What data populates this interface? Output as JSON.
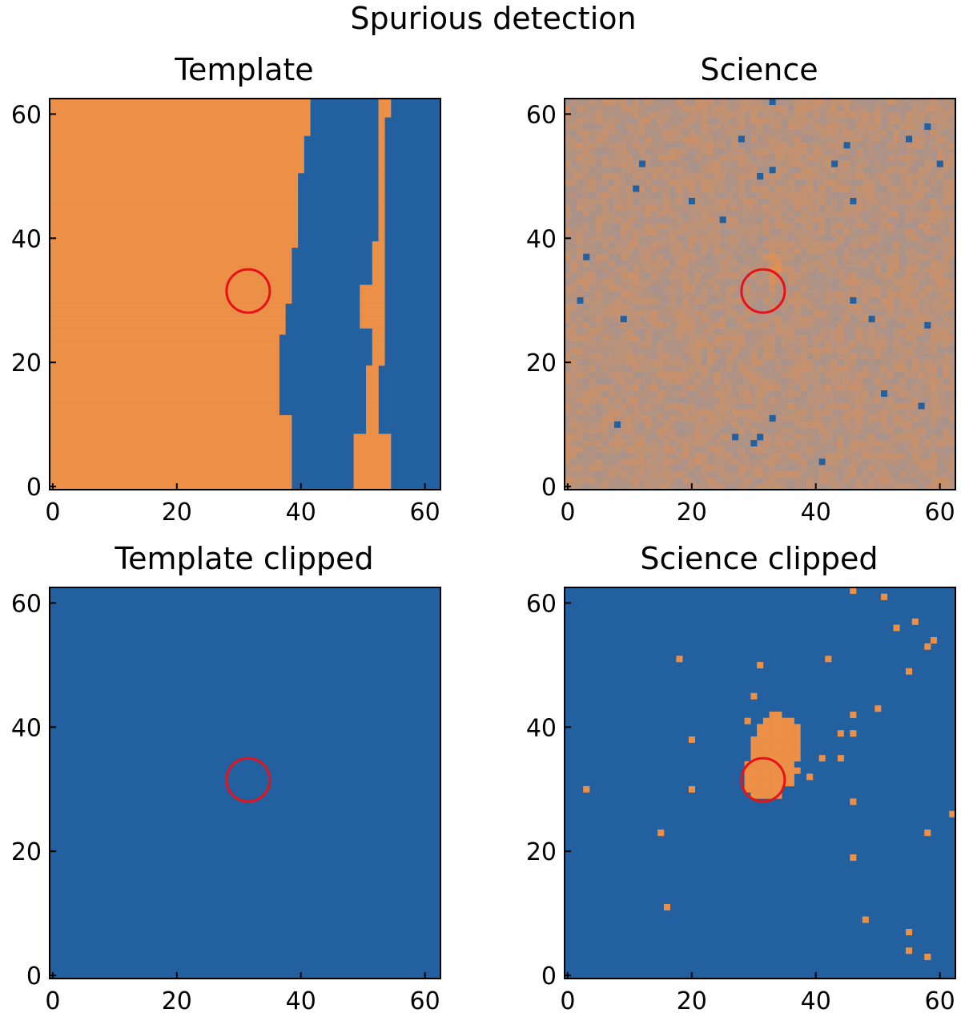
{
  "figure": {
    "title": "Spurious detection"
  },
  "colors": {
    "orange": "#ec8f47",
    "blue": "#2360a0",
    "circle": "#e8111a",
    "axis": "#000000"
  },
  "chart_data": [
    {
      "type": "heatmap",
      "title": "Template",
      "xlim": [
        -0.5,
        62.5
      ],
      "ylim": [
        -0.5,
        62.5
      ],
      "xticks": [
        "0",
        "20",
        "40",
        "60"
      ],
      "yticks": [
        "0",
        "20",
        "40",
        "60"
      ],
      "marker_circle": {
        "x": 31.5,
        "y": 31.5
      },
      "description_values": "left region orange up to x~38-42, blue band x~39-52, thin orange streak x~51-55, blue beyond",
      "regions": [
        {
          "color": "orange",
          "x0": -0.5,
          "x1": 38.5,
          "y0": -0.5,
          "y1": 62.5
        },
        {
          "color": "orange",
          "x0": 38.5,
          "x1": 41.5,
          "y0": 51.5,
          "y1": 62.5
        },
        {
          "color": "orange",
          "x0": 38.5,
          "x1": 40.5,
          "y0": 38.5,
          "y1": 51.5
        },
        {
          "color": "orange",
          "x0": 38.5,
          "x1": 39.5,
          "y0": 29.5,
          "y1": 38.5
        },
        {
          "color": "orange",
          "x0": 36.5,
          "x1": 38.5,
          "y0": 11.5,
          "y1": 25.5
        },
        {
          "color": "blue",
          "x0": 38.5,
          "x1": 51.5,
          "y0": -0.5,
          "y1": 29.5
        },
        {
          "color": "orange",
          "x0": 50.5,
          "x1": 54.5,
          "y0": 2.5,
          "y1": 10.5
        },
        {
          "color": "orange",
          "x0": 52.5,
          "x1": 53.5,
          "y0": 10.5,
          "y1": 32.5
        },
        {
          "color": "orange",
          "x0": 53.5,
          "x1": 54.5,
          "y0": 32.5,
          "y1": 62.5
        },
        {
          "color": "blue",
          "x0": 54.5,
          "x1": 62.5,
          "y0": -0.5,
          "y1": 62.5
        }
      ]
    },
    {
      "type": "heatmap",
      "title": "Science",
      "xlim": [
        -0.5,
        62.5
      ],
      "ylim": [
        -0.5,
        62.5
      ],
      "xticks": [
        "0",
        "20",
        "40",
        "60"
      ],
      "yticks": [
        "0",
        "20",
        "40",
        "60"
      ],
      "marker_circle": {
        "x": 31.5,
        "y": 31.5
      },
      "source": {
        "x": 33.5,
        "y": 35.5
      },
      "blue_pixels": [
        [
          20,
          46
        ],
        [
          25,
          43
        ],
        [
          33,
          51
        ],
        [
          43,
          52
        ],
        [
          11,
          48
        ],
        [
          3,
          37
        ],
        [
          2,
          30
        ],
        [
          27,
          8
        ],
        [
          30,
          7
        ],
        [
          31,
          8
        ],
        [
          33,
          11
        ],
        [
          41,
          4
        ],
        [
          51,
          15
        ],
        [
          57,
          13
        ],
        [
          46,
          46
        ],
        [
          12,
          52
        ],
        [
          28,
          56
        ],
        [
          33,
          62
        ],
        [
          45,
          55
        ],
        [
          60,
          52
        ],
        [
          55,
          56
        ],
        [
          58,
          58
        ],
        [
          9,
          27
        ],
        [
          8,
          10
        ],
        [
          49,
          27
        ],
        [
          58,
          26
        ],
        [
          46,
          30
        ],
        [
          31,
          50
        ]
      ]
    },
    {
      "type": "heatmap",
      "title": "Template clipped",
      "xlim": [
        -0.5,
        62.5
      ],
      "ylim": [
        -0.5,
        62.5
      ],
      "xticks": [
        "0",
        "20",
        "40",
        "60"
      ],
      "yticks": [
        "0",
        "20",
        "40",
        "60"
      ],
      "marker_circle": {
        "x": 31.5,
        "y": 31.5
      }
    },
    {
      "type": "heatmap",
      "title": "Science clipped",
      "xlim": [
        -0.5,
        62.5
      ],
      "ylim": [
        -0.5,
        62.5
      ],
      "xticks": [
        "0",
        "20",
        "40",
        "60"
      ],
      "yticks": [
        "0",
        "20",
        "40",
        "60"
      ],
      "marker_circle": {
        "x": 31.5,
        "y": 31.5
      },
      "orange_pixels": [
        [
          3,
          30
        ],
        [
          15,
          23
        ],
        [
          16,
          11
        ],
        [
          18,
          51
        ],
        [
          20,
          38
        ],
        [
          20,
          30
        ],
        [
          29,
          41
        ],
        [
          30,
          45
        ],
        [
          31,
          50
        ],
        [
          37,
          33
        ],
        [
          39,
          32
        ],
        [
          41,
          35
        ],
        [
          42,
          51
        ],
        [
          44,
          39
        ],
        [
          44,
          35
        ],
        [
          46,
          42
        ],
        [
          46,
          39
        ],
        [
          46,
          28
        ],
        [
          46,
          19
        ],
        [
          48,
          9
        ],
        [
          50,
          43
        ],
        [
          51,
          61
        ],
        [
          53,
          56
        ],
        [
          55,
          49
        ],
        [
          55,
          7
        ],
        [
          55,
          4
        ],
        [
          56,
          57
        ],
        [
          58,
          53
        ],
        [
          58,
          23
        ],
        [
          58,
          3
        ],
        [
          59,
          54
        ],
        [
          62,
          26
        ],
        [
          46,
          62
        ]
      ],
      "blob": [
        [
          33,
          42
        ],
        [
          34,
          42
        ],
        [
          32,
          41
        ],
        [
          33,
          41
        ],
        [
          34,
          41
        ],
        [
          35,
          41
        ],
        [
          36,
          41
        ],
        [
          31,
          40
        ],
        [
          32,
          40
        ],
        [
          33,
          40
        ],
        [
          34,
          40
        ],
        [
          35,
          40
        ],
        [
          36,
          40
        ],
        [
          37,
          40
        ],
        [
          31,
          39
        ],
        [
          32,
          39
        ],
        [
          33,
          39
        ],
        [
          34,
          39
        ],
        [
          35,
          39
        ],
        [
          36,
          39
        ],
        [
          37,
          39
        ],
        [
          30,
          38
        ],
        [
          31,
          38
        ],
        [
          32,
          38
        ],
        [
          33,
          38
        ],
        [
          34,
          38
        ],
        [
          35,
          38
        ],
        [
          36,
          38
        ],
        [
          37,
          38
        ],
        [
          30,
          37
        ],
        [
          31,
          37
        ],
        [
          32,
          37
        ],
        [
          33,
          37
        ],
        [
          34,
          37
        ],
        [
          35,
          37
        ],
        [
          36,
          37
        ],
        [
          37,
          37
        ],
        [
          30,
          36
        ],
        [
          31,
          36
        ],
        [
          32,
          36
        ],
        [
          33,
          36
        ],
        [
          34,
          36
        ],
        [
          35,
          36
        ],
        [
          36,
          36
        ],
        [
          37,
          36
        ],
        [
          30,
          35
        ],
        [
          31,
          35
        ],
        [
          32,
          35
        ],
        [
          33,
          35
        ],
        [
          34,
          35
        ],
        [
          35,
          35
        ],
        [
          36,
          35
        ],
        [
          37,
          35
        ],
        [
          29,
          34
        ],
        [
          30,
          34
        ],
        [
          31,
          34
        ],
        [
          32,
          34
        ],
        [
          33,
          34
        ],
        [
          34,
          34
        ],
        [
          35,
          34
        ],
        [
          36,
          34
        ],
        [
          29,
          33
        ],
        [
          30,
          33
        ],
        [
          31,
          33
        ],
        [
          32,
          33
        ],
        [
          33,
          33
        ],
        [
          34,
          33
        ],
        [
          35,
          33
        ],
        [
          36,
          33
        ],
        [
          29,
          32
        ],
        [
          30,
          32
        ],
        [
          31,
          32
        ],
        [
          32,
          32
        ],
        [
          33,
          32
        ],
        [
          34,
          32
        ],
        [
          35,
          32
        ],
        [
          36,
          32
        ],
        [
          29,
          31
        ],
        [
          30,
          31
        ],
        [
          31,
          31
        ],
        [
          32,
          31
        ],
        [
          33,
          31
        ],
        [
          34,
          31
        ],
        [
          35,
          31
        ],
        [
          36,
          31
        ],
        [
          29,
          30
        ],
        [
          30,
          30
        ],
        [
          31,
          30
        ],
        [
          32,
          30
        ],
        [
          33,
          30
        ],
        [
          34,
          30
        ],
        [
          30,
          29
        ],
        [
          31,
          29
        ],
        [
          32,
          29
        ],
        [
          33,
          29
        ],
        [
          34,
          29
        ]
      ]
    }
  ]
}
